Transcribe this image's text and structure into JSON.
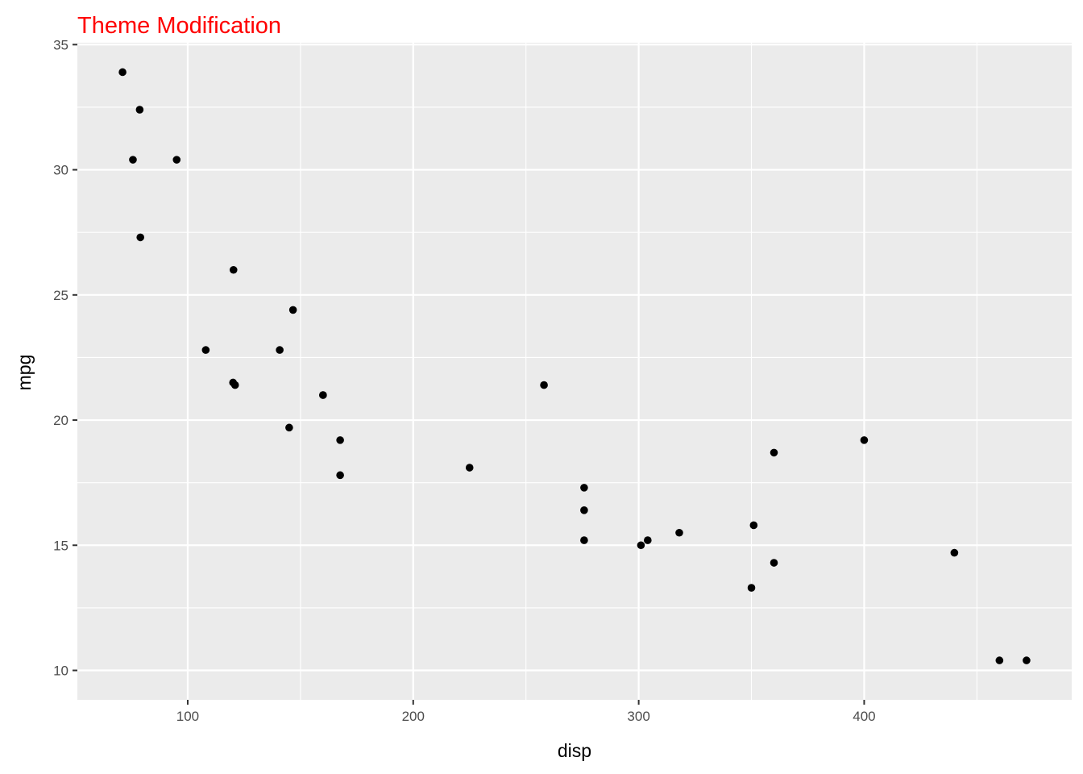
{
  "chart_data": {
    "type": "scatter",
    "title": "Theme Modification",
    "xlabel": "disp",
    "ylabel": "mpg",
    "xlim": [
      51.055,
      492.045
    ],
    "ylim": [
      8.825,
      35.075
    ],
    "x_ticks": [
      100,
      200,
      300,
      400
    ],
    "x_tick_labels": [
      "100",
      "200",
      "300",
      "400"
    ],
    "x_minor_ticks": [
      150,
      250,
      350,
      450
    ],
    "y_ticks": [
      10,
      15,
      20,
      25,
      30,
      35
    ],
    "y_tick_labels": [
      "10",
      "15",
      "20",
      "25",
      "30",
      "35"
    ],
    "y_minor_ticks": [
      12.5,
      17.5,
      22.5,
      27.5,
      32.5
    ],
    "grid": true,
    "legend": "none",
    "x": [
      160,
      160,
      108,
      258,
      360,
      225,
      360,
      146.7,
      140.8,
      167.6,
      167.6,
      275.8,
      275.8,
      275.8,
      472,
      460,
      440,
      78.7,
      75.7,
      71.1,
      120.1,
      318,
      304,
      350,
      400,
      79,
      120.3,
      95.1,
      351,
      145,
      301,
      121
    ],
    "y": [
      21,
      21,
      22.8,
      21.4,
      18.7,
      18.1,
      14.3,
      24.4,
      22.8,
      19.2,
      17.8,
      16.4,
      17.3,
      15.2,
      10.4,
      10.4,
      14.7,
      32.4,
      30.4,
      33.9,
      21.5,
      15.5,
      15.2,
      13.3,
      19.2,
      27.3,
      26,
      30.4,
      15.8,
      19.7,
      15,
      21.4
    ]
  },
  "colors": {
    "title": "#FF0000",
    "panel_background": "#EBEBEB",
    "grid_major": "#FFFFFF",
    "point": "#000000",
    "tick_label": "#4D4D4D",
    "axis_tick": "#333333"
  }
}
